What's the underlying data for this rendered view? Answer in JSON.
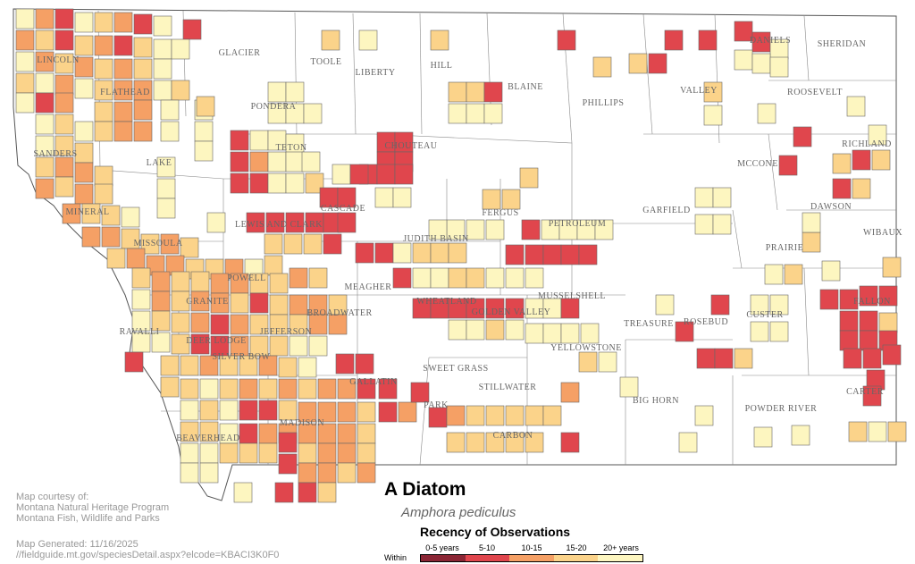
{
  "map": {
    "title": "A Diatom",
    "scientific_name": "Amphora pediculus",
    "legend": {
      "title": "Recency of Observations",
      "prefix": "Within",
      "items": [
        {
          "label": "0-5 years",
          "color": "#8b2635"
        },
        {
          "label": "5-10",
          "color": "#e0464d"
        },
        {
          "label": "10-15",
          "color": "#f5a065"
        },
        {
          "label": "15-20",
          "color": "#fbd38a"
        },
        {
          "label": "20+ years",
          "color": "#fdf6c0"
        }
      ]
    },
    "credit": [
      "Map courtesy of:",
      "Montana Natural Heritage Program",
      "Montana Fish, Wildlife and Parks"
    ],
    "generated": [
      "Map Generated: 11/16/2025",
      "//fieldguide.mt.gov/speciesDetail.aspx?elcode=KBACI3K0F0"
    ],
    "counties": [
      "LINCOLN",
      "FLATHEAD",
      "GLACIER",
      "TOOLE",
      "LIBERTY",
      "HILL",
      "BLAINE",
      "PHILLIPS",
      "VALLEY",
      "DANIELS",
      "SHERIDAN",
      "ROOSEVELT",
      "PONDERA",
      "TETON",
      "CHOUTEAU",
      "RICHLAND",
      "MCCONE",
      "SANDERS",
      "LAKE",
      "MINERAL",
      "CASCADE",
      "FERGUS",
      "PETROLEUM",
      "GARFIELD",
      "DAWSON",
      "WIBAUX",
      "MISSOULA",
      "LEWIS AND CLARK",
      "JUDITH BASIN",
      "PRAIRIE",
      "POWELL",
      "MEAGHER",
      "MUSSELSHELL",
      "GRANITE",
      "BROADWATER",
      "WHEATLAND",
      "GOLDEN VALLEY",
      "FALLON",
      "RAVALLI",
      "DEER LODGE",
      "JEFFERSON",
      "TREASURE",
      "ROSEBUD",
      "CUSTER",
      "SILVER BOW",
      "STILLWATER",
      "YELLOWSTONE",
      "SWEET GRASS",
      "GALLATIN",
      "PARK",
      "BIG HORN",
      "POWDER RIVER",
      "CARTER",
      "CARBON",
      "BEAVERHEAD",
      "MADISON"
    ]
  }
}
